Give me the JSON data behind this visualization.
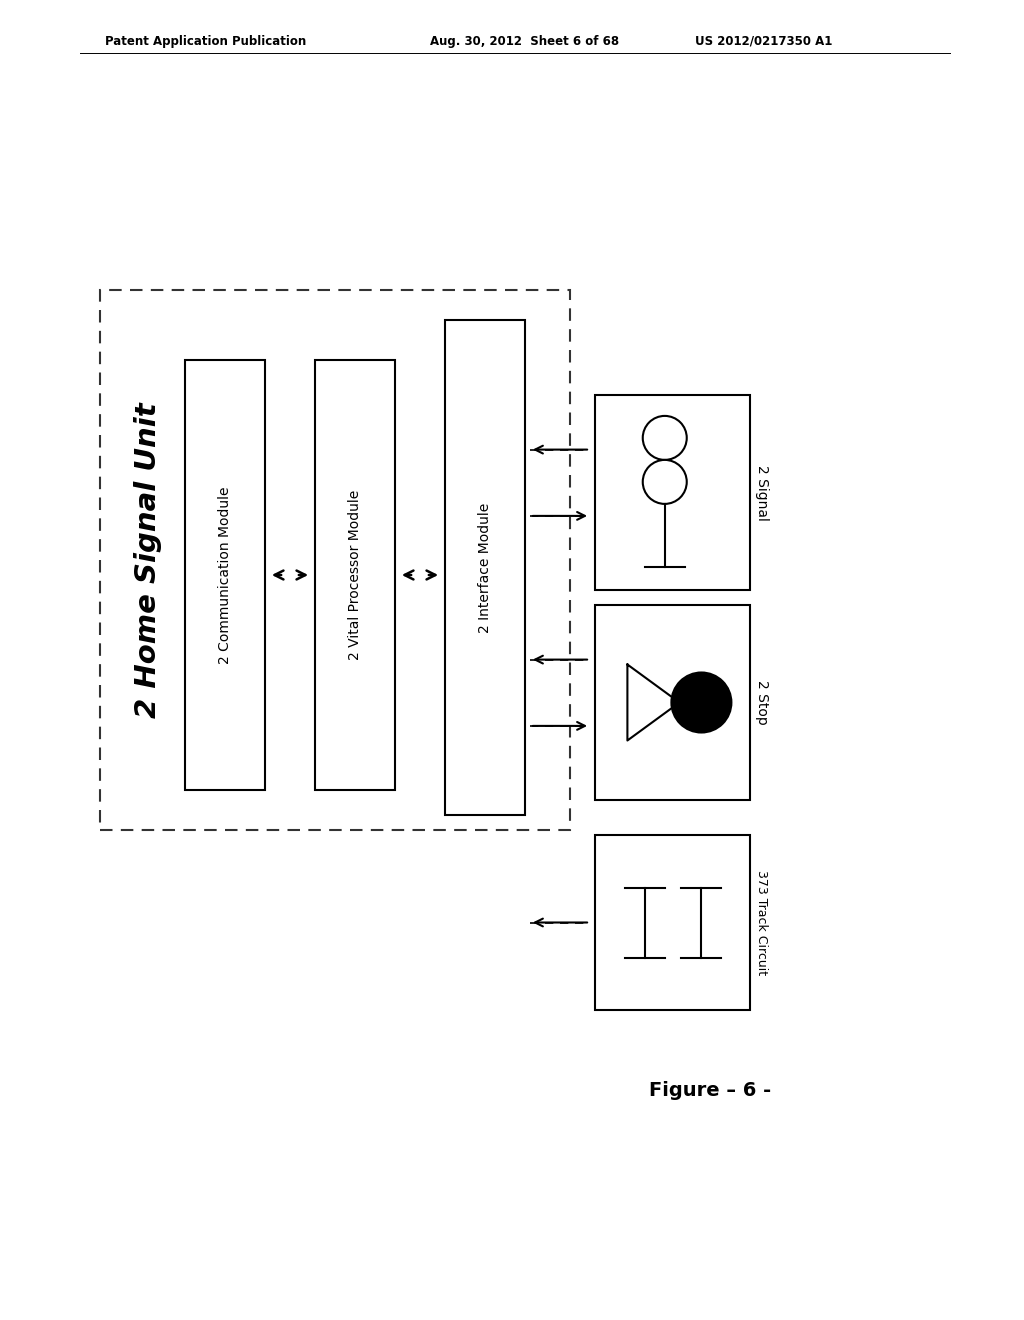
{
  "bg_color": "#ffffff",
  "header_left": "Patent Application Publication",
  "header_mid": "Aug. 30, 2012  Sheet 6 of 68",
  "header_right": "US 2012/0217350 A1",
  "title": "2 Home Signal Unit",
  "box_comm": "2 Communication Module",
  "box_vital": "2 Vital Processor Module",
  "box_iface": "2 Interface Module",
  "label_signal": "2 Signal",
  "label_stop": "2 Stop",
  "label_track": "373 Track Circuit",
  "figure_label": "Figure – 6 -",
  "dashed_box_color": "#333333",
  "solid_box_color": "#000000",
  "text_color": "#000000"
}
